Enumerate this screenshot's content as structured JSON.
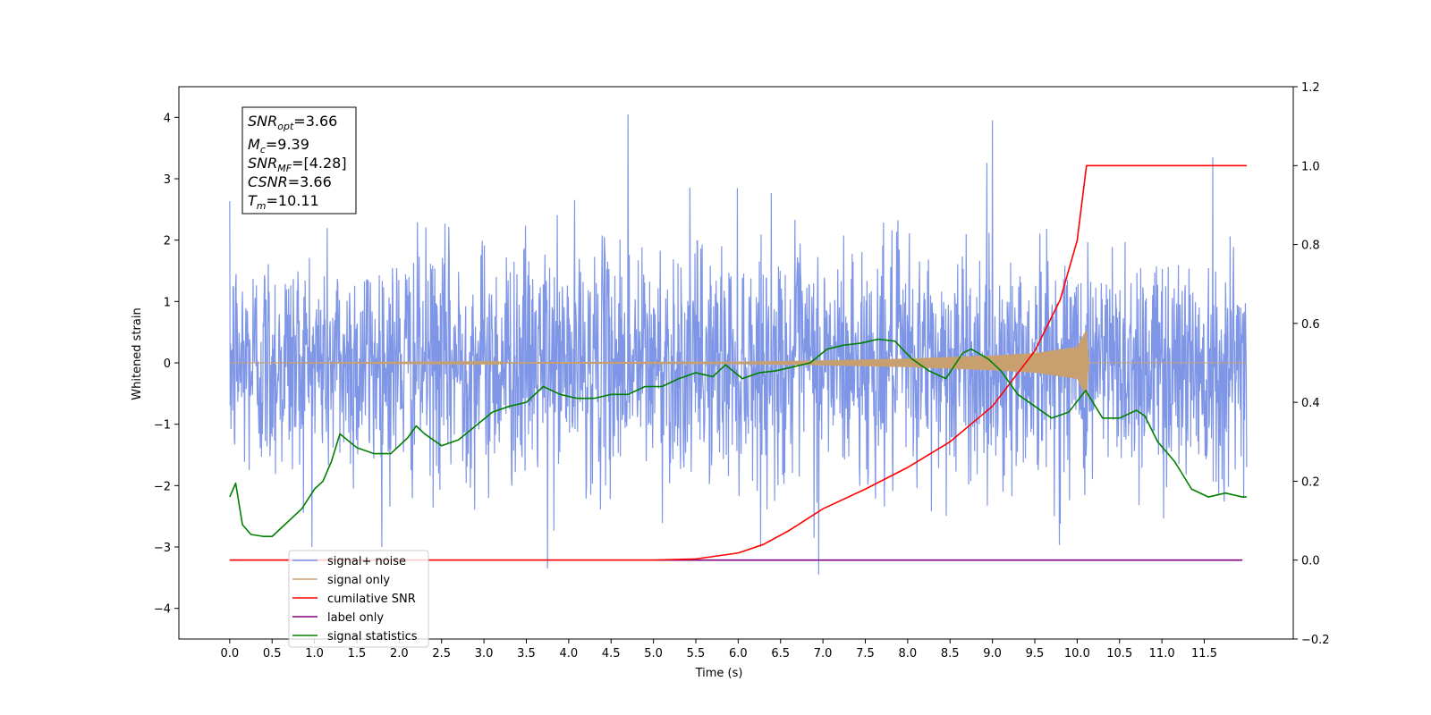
{
  "chart_data": {
    "type": "line",
    "xlabel": "Time (s)",
    "ylabel": "Whitened strain",
    "ylabel_right": "",
    "xlim": [
      -0.6,
      12.55
    ],
    "ylim_left": [
      -4.5,
      4.5
    ],
    "ylim_right": [
      -0.2,
      1.2
    ],
    "x_ticks": [
      0.0,
      0.5,
      1.0,
      1.5,
      2.0,
      2.5,
      3.0,
      3.5,
      4.0,
      4.5,
      5.0,
      5.5,
      6.0,
      6.5,
      7.0,
      7.5,
      8.0,
      8.5,
      9.0,
      9.5,
      10.0,
      10.5,
      11.0,
      11.5
    ],
    "x_tick_labels": [
      "0.0",
      "0.5",
      "1.0",
      "1.5",
      "2.0",
      "2.5",
      "3.0",
      "3.5",
      "4.0",
      "4.5",
      "5.0",
      "5.5",
      "6.0",
      "6.5",
      "7.0",
      "7.5",
      "8.0",
      "8.5",
      "9.0",
      "9.5",
      "10.0",
      "10.5",
      "11.0",
      "11.5"
    ],
    "y_ticks_left": [
      -4,
      -3,
      -2,
      -1,
      0,
      1,
      2,
      3,
      4
    ],
    "y_tick_labels_left": [
      "−4",
      "−3",
      "−2",
      "−1",
      "0",
      "1",
      "2",
      "3",
      "4"
    ],
    "y_ticks_right": [
      -0.2,
      0.0,
      0.2,
      0.4,
      0.6,
      0.8,
      1.0,
      1.2
    ],
    "y_tick_labels_right": [
      "−0.2",
      "0.0",
      "0.2",
      "0.4",
      "0.6",
      "0.8",
      "1.0",
      "1.2"
    ],
    "grid": false,
    "legend_position": "lower-left",
    "annotation": {
      "snr_opt": {
        "sym": "SNR",
        "sub": "opt",
        "value": "=3.66"
      },
      "mc": {
        "sym": "M",
        "sub": "c",
        "value": "=9.39"
      },
      "snr_mf": {
        "sym": "SNR",
        "sub": "MF",
        "value": "=[4.28]"
      },
      "csnr": {
        "sym": "CSNR",
        "value": "=3.66"
      },
      "tm": {
        "sym": "T",
        "sub": "m",
        "value": "=10.11"
      }
    },
    "series": [
      {
        "name": "signal+ noise",
        "axis": "left",
        "color": "#7890e6",
        "kind": "noise",
        "x_range": [
          0.0,
          12.0
        ],
        "amplitude_range": [
          -3.45,
          4.05
        ],
        "notable_peaks": [
          [
            4.7,
            4.05
          ],
          [
            9.0,
            3.95
          ],
          [
            11.6,
            3.35
          ],
          [
            6.95,
            -3.45
          ],
          [
            3.75,
            -3.35
          ]
        ]
      },
      {
        "name": "signal only",
        "axis": "left",
        "color": "#c8a070",
        "kind": "chirp",
        "x_range": [
          0.0,
          12.0
        ],
        "merger_time": 10.11,
        "envelope": [
          [
            0.0,
            0.0
          ],
          [
            6.0,
            0.02
          ],
          [
            7.0,
            0.04
          ],
          [
            8.0,
            0.07
          ],
          [
            9.0,
            0.12
          ],
          [
            9.5,
            0.16
          ],
          [
            10.0,
            0.26
          ],
          [
            10.11,
            0.55
          ],
          [
            10.14,
            0.0
          ],
          [
            12.0,
            0.0
          ]
        ]
      },
      {
        "name": "cumilative SNR",
        "axis": "right",
        "color": "#ff0000",
        "x": [
          0.0,
          5.0,
          5.5,
          6.0,
          6.3,
          6.6,
          7.0,
          7.5,
          8.0,
          8.5,
          9.0,
          9.5,
          9.8,
          10.0,
          10.11,
          12.0
        ],
        "y": [
          0.0,
          0.0,
          0.003,
          0.018,
          0.04,
          0.075,
          0.13,
          0.18,
          0.235,
          0.3,
          0.39,
          0.53,
          0.66,
          0.81,
          1.0,
          1.0
        ]
      },
      {
        "name": "label only",
        "axis": "right",
        "color": "#800080",
        "x": [
          0.0,
          11.95
        ],
        "y": [
          0.0,
          0.0
        ]
      },
      {
        "name": "signal statistics",
        "axis": "right",
        "color": "#008000",
        "x": [
          0.0,
          0.07,
          0.15,
          0.25,
          0.4,
          0.5,
          0.65,
          0.85,
          1.0,
          1.1,
          1.2,
          1.3,
          1.5,
          1.7,
          1.9,
          2.1,
          2.2,
          2.3,
          2.5,
          2.7,
          2.9,
          3.1,
          3.3,
          3.5,
          3.7,
          3.9,
          4.1,
          4.3,
          4.5,
          4.7,
          4.9,
          5.1,
          5.3,
          5.5,
          5.7,
          5.85,
          6.05,
          6.25,
          6.45,
          6.65,
          6.85,
          7.05,
          7.25,
          7.45,
          7.65,
          7.85,
          8.05,
          8.25,
          8.45,
          8.65,
          8.75,
          8.95,
          9.1,
          9.3,
          9.5,
          9.7,
          9.9,
          10.1,
          10.3,
          10.5,
          10.7,
          10.8,
          10.95,
          11.15,
          11.35,
          11.55,
          11.75,
          11.95,
          12.0
        ],
        "y": [
          0.16,
          0.195,
          0.09,
          0.065,
          0.06,
          0.06,
          0.09,
          0.13,
          0.18,
          0.2,
          0.25,
          0.32,
          0.285,
          0.27,
          0.27,
          0.31,
          0.34,
          0.32,
          0.29,
          0.305,
          0.34,
          0.375,
          0.39,
          0.4,
          0.44,
          0.42,
          0.41,
          0.41,
          0.42,
          0.42,
          0.44,
          0.44,
          0.46,
          0.475,
          0.465,
          0.495,
          0.46,
          0.475,
          0.48,
          0.49,
          0.5,
          0.535,
          0.545,
          0.55,
          0.56,
          0.555,
          0.51,
          0.48,
          0.46,
          0.525,
          0.535,
          0.51,
          0.48,
          0.42,
          0.39,
          0.36,
          0.375,
          0.43,
          0.36,
          0.36,
          0.38,
          0.365,
          0.3,
          0.25,
          0.18,
          0.16,
          0.17,
          0.16,
          0.16
        ]
      }
    ]
  }
}
